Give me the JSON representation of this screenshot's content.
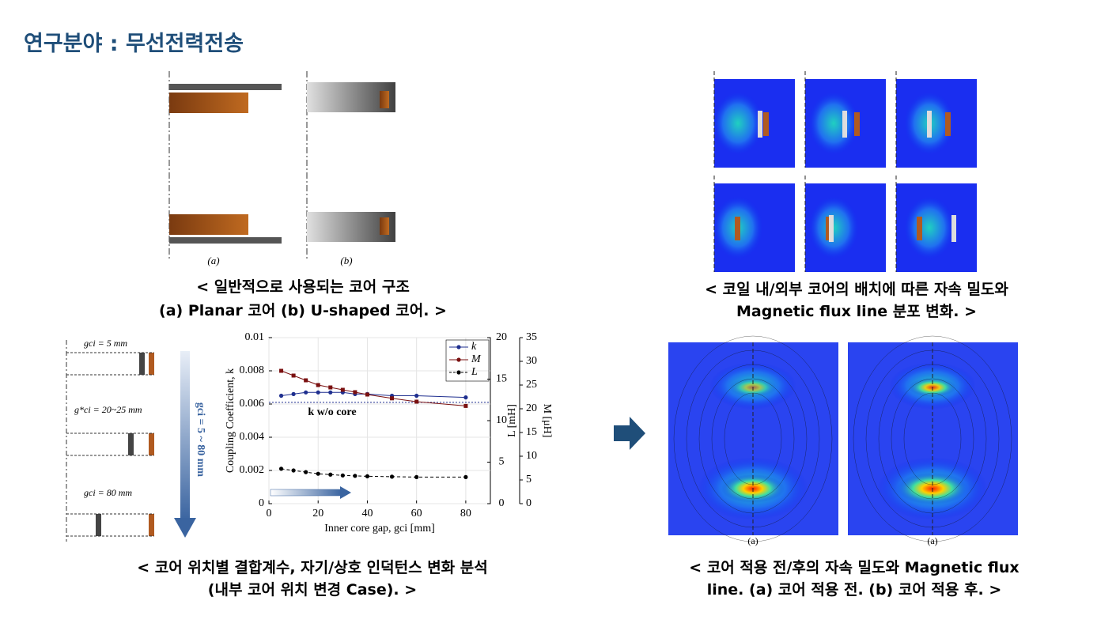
{
  "title": "연구분야 : 무선전력전송",
  "figures": [
    {
      "caption": [
        "< 일반적으로 사용되는 코어 구조",
        "(a) Planar 코어 (b) U-shaped 코어. >"
      ],
      "labels": [
        "(a)",
        "(b)"
      ]
    },
    {
      "caption": [
        "< 코일 내/외부 코어의 배치에 따른 자속 밀도와",
        "Magnetic flux line 분포 변화. >"
      ]
    },
    {
      "caption": [
        "< 코어 위치별 결합계수, 자기/상호 인덕턴스 변화 분석",
        "(내부 코어 위치 변경 Case). >"
      ],
      "gap_labels": [
        "gci = 5 mm",
        "g*ci = 20~25 mm",
        "gci = 80 mm"
      ],
      "arrow_label": "gci = 5 ~ 80 mm"
    },
    {
      "caption": [
        "< 코어 적용 전/후의 자속 밀도와 Magnetic flux",
        "line. (a) 코어 적용 전. (b) 코어 적용 후. >"
      ],
      "labels": [
        "(a)",
        "(a)"
      ]
    }
  ],
  "chart_data": {
    "type": "line",
    "xlabel": "Inner core gap, gci [mm]",
    "ylabel": "Coupling Coefficient, k",
    "y2label": "L [mH]",
    "y3label": "M [μH]",
    "x": [
      5,
      10,
      15,
      20,
      25,
      30,
      35,
      40,
      50,
      60,
      80
    ],
    "series": [
      {
        "name": "k",
        "color": "#1f2f8f",
        "marker": "circle",
        "dash": false,
        "axis": "y",
        "values": [
          0.0065,
          0.0066,
          0.0067,
          0.0067,
          0.0067,
          0.0067,
          0.0066,
          0.0066,
          0.0065,
          0.0065,
          0.0064
        ]
      },
      {
        "name": "M",
        "color": "#7a1010",
        "marker": "square",
        "dash": false,
        "axis": "y3",
        "values": [
          28,
          27,
          26,
          25,
          24.5,
          24,
          23.5,
          23,
          22.2,
          21.5,
          20.6
        ]
      },
      {
        "name": "L",
        "color": "#000000",
        "marker": "circle",
        "dash": true,
        "axis": "y2",
        "values": [
          4.2,
          4.0,
          3.8,
          3.6,
          3.5,
          3.4,
          3.35,
          3.3,
          3.25,
          3.2,
          3.2
        ]
      }
    ],
    "reference": {
      "value": 0.0061,
      "label": "k w/o core",
      "color": "#1f2f8f"
    },
    "xlim": [
      0,
      90
    ],
    "xticks": [
      0,
      20,
      40,
      60,
      80
    ],
    "ylim": [
      0,
      0.01
    ],
    "yticks": [
      0,
      0.002,
      0.004,
      0.006,
      0.008,
      0.01
    ],
    "y2lim": [
      0,
      20
    ],
    "y2ticks": [
      0,
      5,
      10,
      15,
      20
    ],
    "y3lim": [
      0,
      35
    ],
    "y3ticks": [
      0,
      5,
      10,
      15,
      20,
      25,
      30,
      35
    ],
    "grid": true
  }
}
